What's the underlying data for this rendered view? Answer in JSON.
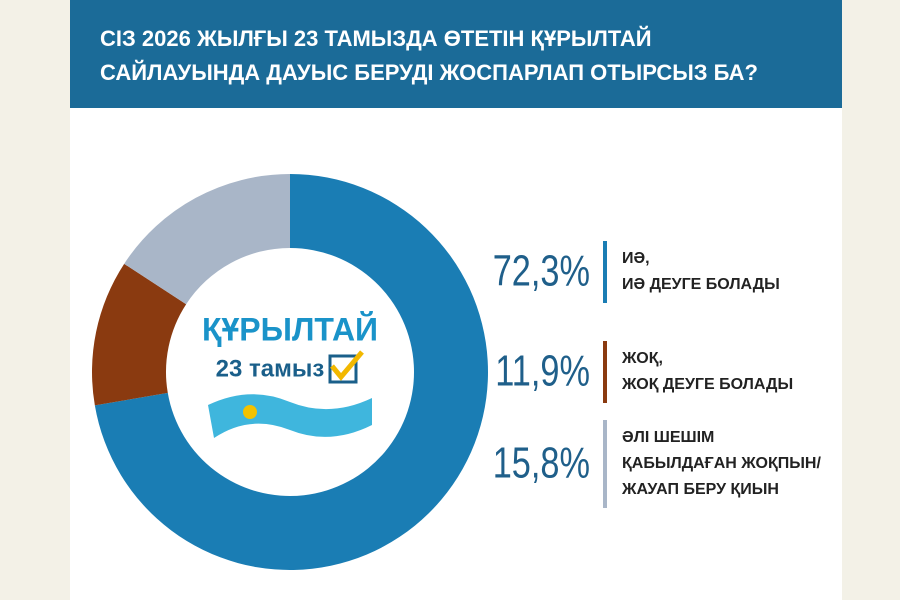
{
  "chart_data": {
    "type": "donut",
    "title": "СІЗ 2026 ЖЫЛҒЫ 23 ТАМЫЗДА ӨТЕТІН ҚҰРЫЛТАЙ\nСАЙЛАУЫНДА ДАУЫС БЕРУДІ ЖОСПАРЛАП ОТЫРСЫЗ БА?",
    "categories": [
      "ИӘ,\nИӘ ДЕУГЕ БОЛАДЫ",
      "ЖОҚ,\nЖОҚ ДЕУГЕ БОЛАДЫ",
      "ӘЛІ ШЕШІМ\nҚАБЫЛДАҒАН ЖОҚПЫН/\nЖАУАП БЕРУ ҚИЫН"
    ],
    "values": [
      72.3,
      11.9,
      15.8
    ],
    "value_labels": [
      "72,3%",
      "11,9%",
      "15,8%"
    ],
    "colors": [
      "#1a7db4",
      "#8a3a10",
      "#a9b6c8"
    ],
    "annotations": [
      "ҚҰРЫЛТАЙ",
      "23 тамыз"
    ]
  }
}
